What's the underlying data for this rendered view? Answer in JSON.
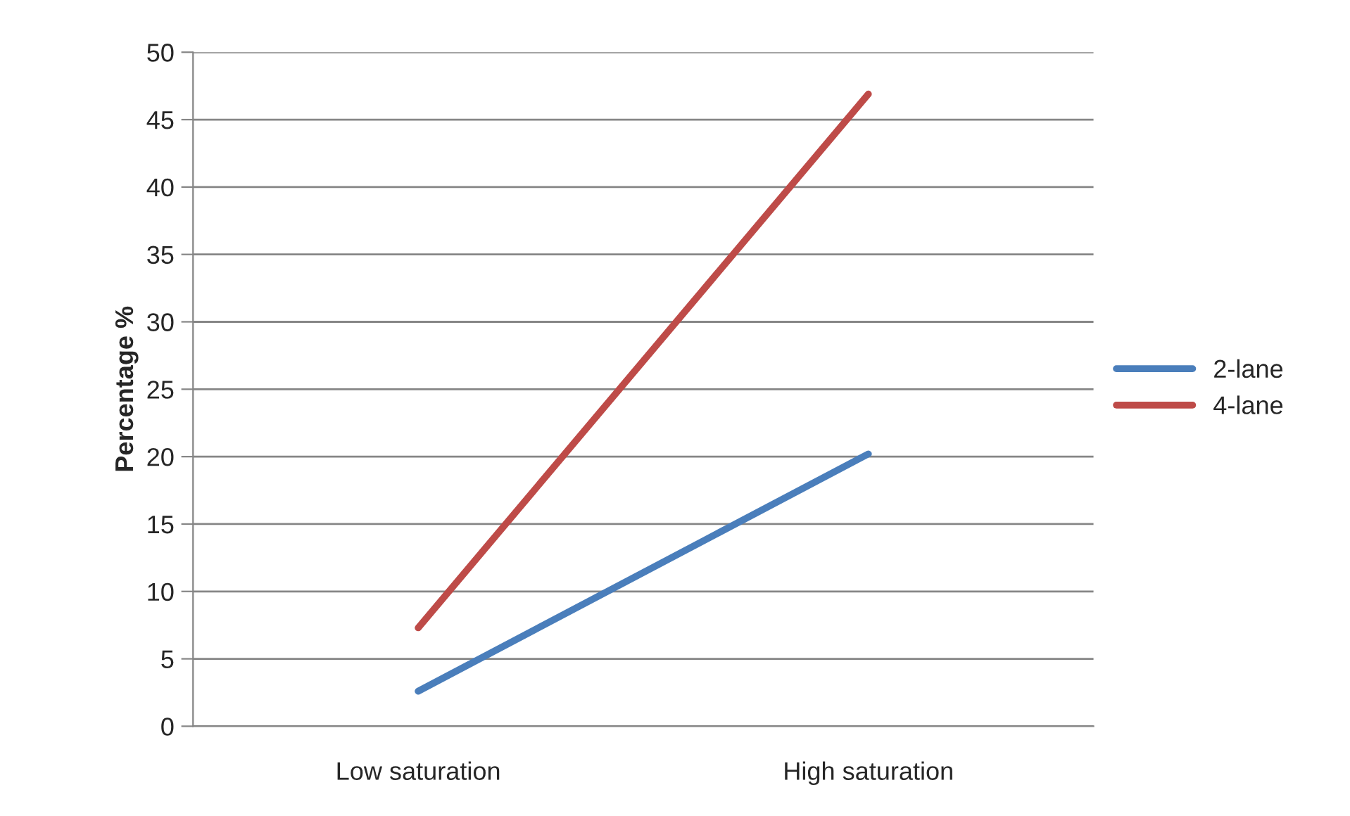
{
  "chart_data": {
    "type": "line",
    "ylabel": "Percentage %",
    "categories": [
      "Low saturation",
      "High saturation"
    ],
    "series": [
      {
        "name": "2-lane",
        "color": "#4a7ebb",
        "values": [
          2.6,
          20.2
        ]
      },
      {
        "name": "4-lane",
        "color": "#be4b48",
        "values": [
          7.3,
          46.9
        ]
      }
    ],
    "ylim": [
      0,
      50
    ],
    "yticks": [
      0,
      5,
      10,
      15,
      20,
      25,
      30,
      35,
      40,
      45,
      50
    ],
    "grid": "y",
    "legend": "right",
    "marker": "none",
    "line_style": "solid"
  }
}
